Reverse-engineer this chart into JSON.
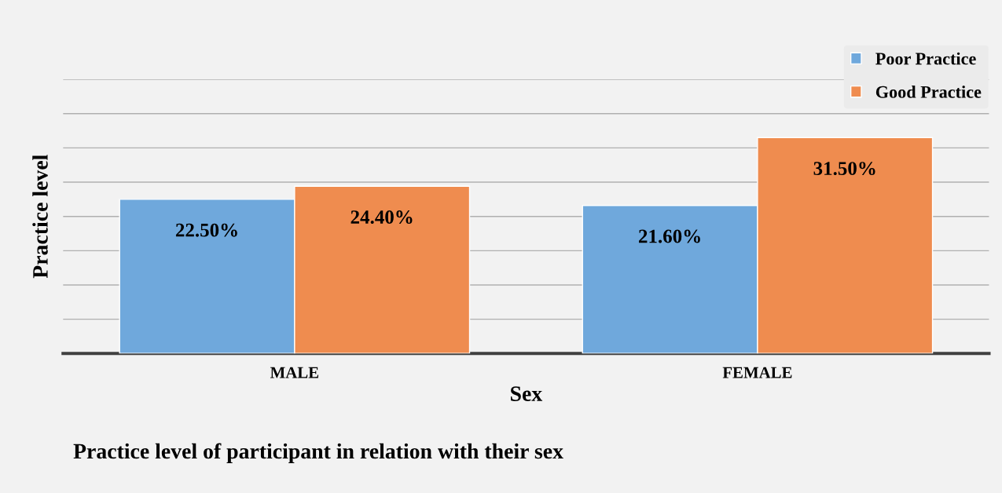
{
  "chart_data": {
    "type": "bar",
    "title": "Practice level of participant in relation with their sex",
    "xlabel": "Sex",
    "ylabel": "Practice level",
    "categories": [
      "MALE",
      "FEMALE"
    ],
    "series": [
      {
        "name": "Poor Practice",
        "color": "#6fa8dc",
        "values": [
          22.5,
          21.6
        ],
        "value_labels": [
          "22.50%",
          "21.60%"
        ]
      },
      {
        "name": "Good Practice",
        "color": "#ef8c4f",
        "values": [
          24.4,
          31.5
        ],
        "value_labels": [
          "24.40%",
          "31.50%"
        ]
      }
    ],
    "ylim": [
      0,
      40
    ],
    "yticks": [
      {
        "value": 0,
        "label": null
      },
      {
        "value": 5,
        "label": null
      },
      {
        "value": 10,
        "label": null
      },
      {
        "value": 15,
        "label": null
      },
      {
        "value": 20,
        "label": null
      },
      {
        "value": 25,
        "label": null
      },
      {
        "value": 30,
        "label": null
      },
      {
        "value": 35,
        "label": null
      },
      {
        "value": 40,
        "label": null
      }
    ],
    "grid": "y",
    "legend": "top right",
    "tick_labels": "x"
  }
}
